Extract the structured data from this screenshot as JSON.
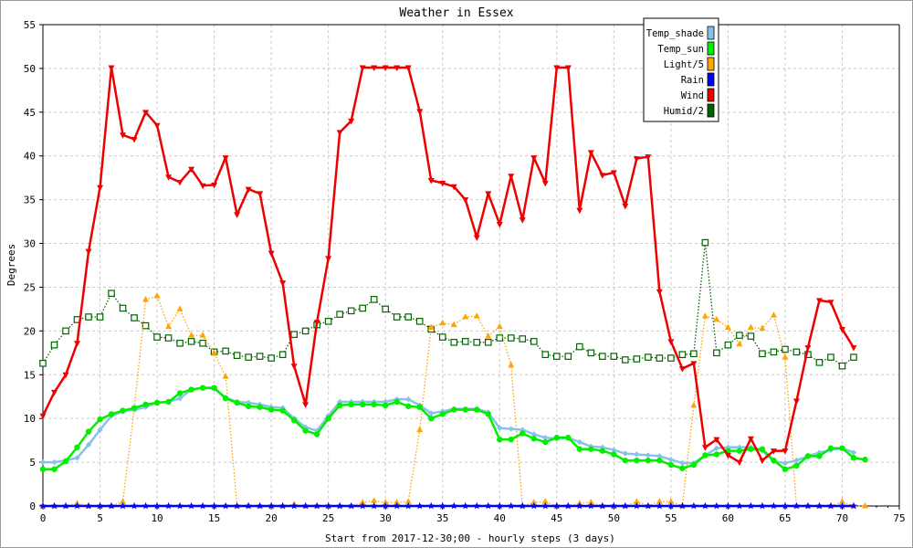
{
  "chart_data": {
    "type": "line",
    "title": "Weather in Essex",
    "xlabel": "Start from 2017-12-30;00 - hourly steps (3 days)",
    "ylabel": "Degrees",
    "xlim": [
      0,
      75
    ],
    "ylim": [
      0,
      55
    ],
    "x_ticks": [
      0,
      5,
      10,
      15,
      20,
      25,
      30,
      35,
      40,
      45,
      50,
      55,
      60,
      65,
      70,
      75
    ],
    "y_ticks": [
      0,
      5,
      10,
      15,
      20,
      25,
      30,
      35,
      40,
      45,
      50,
      55
    ],
    "grid": true,
    "legend_position": "top-right",
    "series": [
      {
        "name": "Temp_shade",
        "color": "#87c3e8",
        "marker": "diamond",
        "line": "solid",
        "values": [
          5.0,
          5.0,
          5.2,
          5.5,
          7.0,
          8.7,
          10.3,
          10.8,
          11.0,
          11.3,
          11.8,
          11.9,
          12.3,
          13.3,
          13.5,
          13.4,
          12.4,
          11.9,
          11.8,
          11.6,
          11.3,
          11.2,
          10.0,
          9.0,
          8.6,
          10.3,
          11.9,
          11.9,
          11.9,
          11.9,
          11.9,
          12.2,
          12.2,
          11.5,
          10.6,
          10.8,
          11.1,
          11.1,
          11.1,
          10.7,
          8.9,
          8.8,
          8.7,
          8.2,
          7.8,
          7.7,
          7.8,
          7.3,
          6.8,
          6.7,
          6.4,
          6.0,
          5.9,
          5.8,
          5.7,
          5.3,
          4.9,
          4.9,
          5.8,
          6.6,
          6.7,
          6.7,
          6.7,
          6.3,
          5.1,
          4.9,
          5.2,
          5.7,
          6.1,
          6.4,
          6.6,
          6.1
        ]
      },
      {
        "name": "Temp_sun",
        "color": "#00ee00",
        "marker": "circle",
        "line": "solid",
        "values": [
          4.2,
          4.2,
          5.1,
          6.7,
          8.5,
          9.9,
          10.5,
          10.9,
          11.2,
          11.6,
          11.8,
          11.9,
          12.9,
          13.3,
          13.5,
          13.5,
          12.3,
          11.8,
          11.4,
          11.3,
          11.0,
          10.9,
          9.8,
          8.6,
          8.2,
          10.0,
          11.5,
          11.6,
          11.6,
          11.6,
          11.5,
          11.9,
          11.4,
          11.3,
          10.0,
          10.5,
          11.0,
          11.0,
          11.0,
          10.5,
          7.6,
          7.6,
          8.3,
          7.7,
          7.3,
          7.8,
          7.8,
          6.5,
          6.5,
          6.3,
          5.9,
          5.2,
          5.2,
          5.2,
          5.2,
          4.7,
          4.3,
          4.7,
          5.8,
          5.9,
          6.3,
          6.3,
          6.5,
          6.5,
          5.2,
          4.2,
          4.6,
          5.7,
          5.7,
          6.6,
          6.6,
          5.5,
          5.3
        ]
      },
      {
        "name": "Light/5",
        "color": "#ffa500",
        "marker": "triangle",
        "line": "dotted",
        "values": [
          0.0,
          0.0,
          0.0,
          0.3,
          0.0,
          0.0,
          0.0,
          0.5,
          11.1,
          23.6,
          24.0,
          20.5,
          22.5,
          19.5,
          19.5,
          17.5,
          14.8,
          0.0,
          0.0,
          0.0,
          0.0,
          0.0,
          0.2,
          0.0,
          0.0,
          0.0,
          0.0,
          0.0,
          0.4,
          0.6,
          0.4,
          0.4,
          0.5,
          8.7,
          20.4,
          20.9,
          20.7,
          21.6,
          21.7,
          19.4,
          20.5,
          16.1,
          0.0,
          0.4,
          0.5,
          0.0,
          0.0,
          0.3,
          0.4,
          0.0,
          0.0,
          0.0,
          0.5,
          0.0,
          0.5,
          0.5,
          0.0,
          11.5,
          21.7,
          21.3,
          20.4,
          18.5,
          20.4,
          20.3,
          21.8,
          17.0,
          0.0,
          0.0,
          0.0,
          0.0,
          0.5,
          0.0,
          0.0
        ]
      },
      {
        "name": "Rain",
        "color": "#0000ff",
        "marker": "star",
        "line": "solid",
        "values": [
          0,
          0,
          0,
          0,
          0,
          0,
          0,
          0,
          0,
          0,
          0,
          0,
          0,
          0,
          0,
          0,
          0,
          0,
          0,
          0,
          0,
          0,
          0,
          0,
          0,
          0,
          0,
          0,
          0,
          0,
          0,
          0,
          0,
          0,
          0,
          0,
          0,
          0,
          0,
          0,
          0,
          0,
          0,
          0,
          0,
          0,
          0,
          0,
          0,
          0,
          0,
          0,
          0,
          0,
          0,
          0,
          0,
          0,
          0,
          0,
          0,
          0,
          0,
          0,
          0,
          0,
          0,
          0,
          0,
          0,
          0,
          0
        ]
      },
      {
        "name": "Wind",
        "color": "#ee0000",
        "marker": "triangle-down",
        "line": "solid",
        "values": [
          10.3,
          13.0,
          15.0,
          18.6,
          29.1,
          36.4,
          50.1,
          42.4,
          41.9,
          45.0,
          43.5,
          37.6,
          37.0,
          38.5,
          36.6,
          36.7,
          39.8,
          33.3,
          36.2,
          35.7,
          28.9,
          25.5,
          16.0,
          11.6,
          21.0,
          28.3,
          42.7,
          44.0,
          50.1,
          50.1,
          50.1,
          50.1,
          50.1,
          45.1,
          37.2,
          36.9,
          36.5,
          35.0,
          30.7,
          35.7,
          32.2,
          37.7,
          32.7,
          39.8,
          36.9,
          50.1,
          50.1,
          33.8,
          40.4,
          37.8,
          38.1,
          34.3,
          39.7,
          39.9,
          24.5,
          18.8,
          15.7,
          16.3,
          6.7,
          7.6,
          5.8,
          5.0,
          7.7,
          5.2,
          6.3,
          6.3,
          12.0,
          18.1,
          23.5,
          23.3,
          20.2,
          18.1
        ]
      },
      {
        "name": "Humid/2",
        "color": "#006400",
        "marker": "square",
        "line": "dotted",
        "values": [
          16.3,
          18.4,
          20.0,
          21.3,
          21.6,
          21.6,
          24.3,
          22.6,
          21.5,
          20.6,
          19.3,
          19.2,
          18.6,
          18.8,
          18.6,
          17.6,
          17.7,
          17.2,
          17.0,
          17.1,
          16.9,
          17.3,
          19.6,
          20.0,
          20.7,
          21.1,
          21.9,
          22.3,
          22.6,
          23.6,
          22.5,
          21.6,
          21.6,
          21.1,
          20.2,
          19.3,
          18.7,
          18.8,
          18.7,
          18.7,
          19.2,
          19.2,
          19.1,
          18.8,
          17.3,
          17.1,
          17.1,
          18.2,
          17.5,
          17.1,
          17.1,
          16.7,
          16.8,
          17.0,
          16.9,
          16.9,
          17.3,
          17.4,
          30.1,
          17.5,
          18.4,
          19.5,
          19.4,
          17.4,
          17.6,
          17.9,
          17.6,
          17.3,
          16.4,
          17.0,
          16.0,
          17.0
        ]
      }
    ]
  }
}
